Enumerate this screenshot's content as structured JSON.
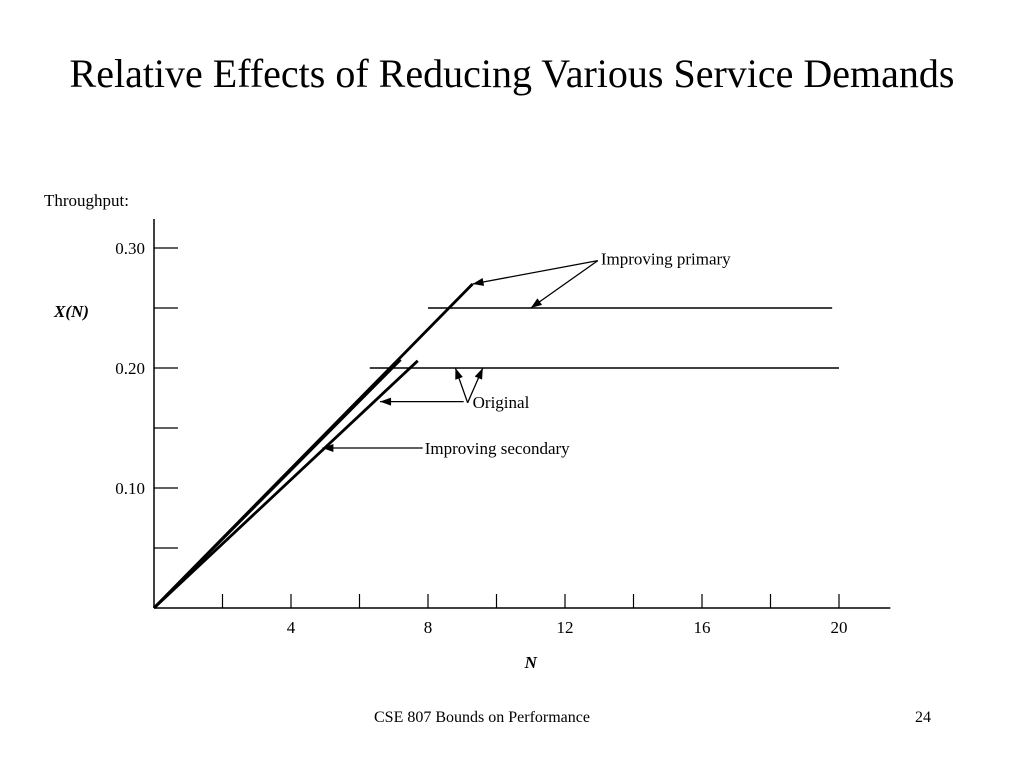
{
  "slide": {
    "title": "Relative Effects of Reducing Various Service Demands",
    "footer": "CSE 807  Bounds on Performance",
    "page_number": "24"
  },
  "chart_data": {
    "type": "line",
    "title": "",
    "ylabel_top": "Throughput:",
    "ylabel": "X(N)",
    "xlabel": "N",
    "xlim": [
      0,
      21.5
    ],
    "ylim": [
      0,
      0.32
    ],
    "x_ticks": [
      2,
      4,
      6,
      8,
      10,
      12,
      14,
      16,
      18,
      20
    ],
    "x_tick_labels": [
      {
        "value": 4,
        "label": "4"
      },
      {
        "value": 8,
        "label": "8"
      },
      {
        "value": 12,
        "label": "12"
      },
      {
        "value": 16,
        "label": "16"
      },
      {
        "value": 20,
        "label": "20"
      }
    ],
    "y_ticks": [
      0.05,
      0.1,
      0.15,
      0.2,
      0.25,
      0.3
    ],
    "y_tick_labels": [
      {
        "value": 0.1,
        "label": "0.10"
      },
      {
        "value": 0.2,
        "label": "0.20"
      },
      {
        "value": 0.3,
        "label": "0.30"
      }
    ],
    "series": [
      {
        "id": "improving-primary-asymptotic",
        "points": [
          [
            0,
            0
          ],
          [
            9.3,
            0.27
          ]
        ],
        "bold": true
      },
      {
        "id": "original-asymptotic",
        "points": [
          [
            0,
            0
          ],
          [
            7.2,
            0.207
          ]
        ],
        "bold": true
      },
      {
        "id": "improving-secondary-asymptotic",
        "points": [
          [
            0,
            0
          ],
          [
            7.7,
            0.206
          ]
        ],
        "bold": true
      },
      {
        "id": "improving-primary-bound",
        "points": [
          [
            8.0,
            0.25
          ],
          [
            19.8,
            0.25
          ]
        ],
        "bold": false
      },
      {
        "id": "original-bound",
        "points": [
          [
            6.3,
            0.2
          ],
          [
            20.0,
            0.2
          ]
        ],
        "bold": false
      }
    ],
    "annotations": [
      {
        "text": "Improving primary",
        "anchor": [
          12.9,
          0.292
        ],
        "arrows_to": [
          [
            9.3,
            0.27
          ],
          [
            11.0,
            0.25
          ]
        ]
      },
      {
        "text": "Original",
        "anchor": [
          9.8,
          0.161
        ],
        "arrows_to": [
          [
            6.6,
            0.172
          ],
          [
            8.8,
            0.2
          ],
          [
            9.6,
            0.2
          ]
        ],
        "elbow": [
          9.8,
          0.172
        ]
      },
      {
        "text": "Improving secondary",
        "anchor": [
          7.7,
          0.135
        ],
        "arrows_to": [
          [
            4.8,
            0.135
          ]
        ]
      }
    ]
  }
}
